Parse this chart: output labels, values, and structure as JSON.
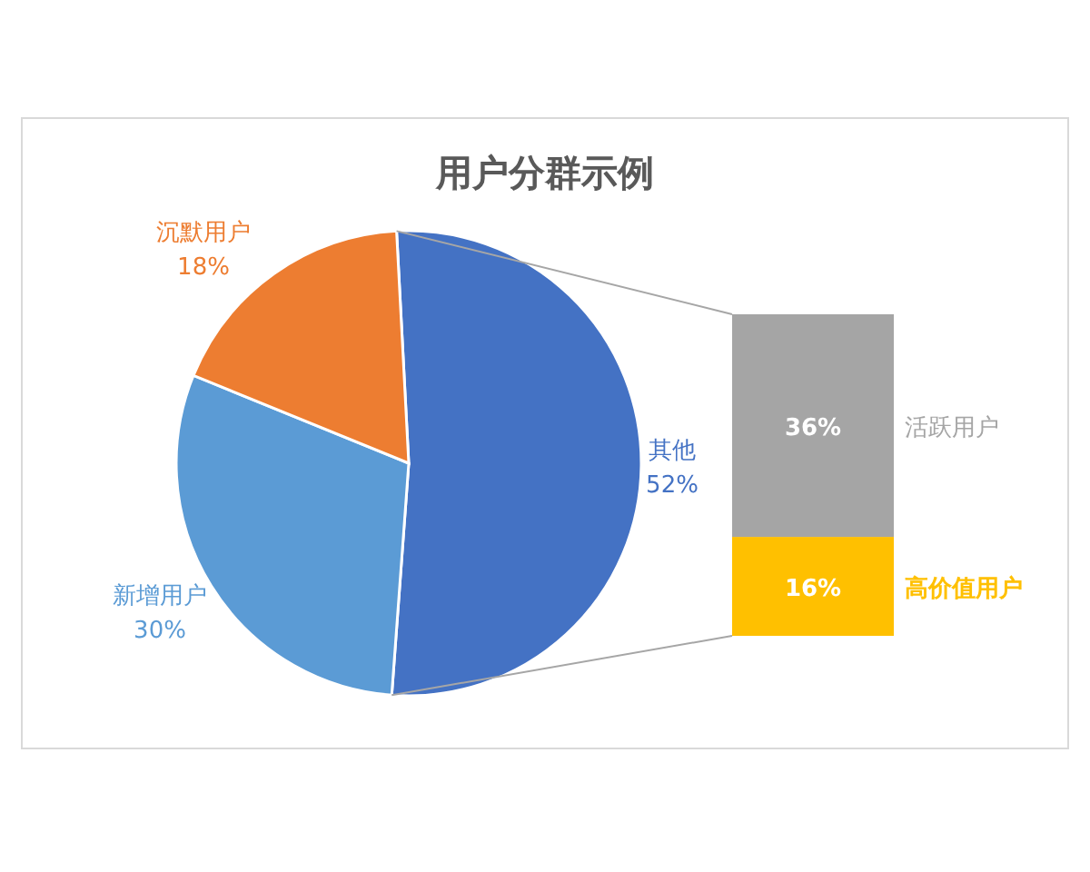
{
  "chart_data": [
    {
      "type": "pie",
      "title": "用户分群示例",
      "categories": [
        "其他",
        "新增用户",
        "沉默用户"
      ],
      "values": [
        52,
        30,
        18
      ],
      "colors": [
        "#4472c4",
        "#5b9bd5",
        "#ed7d31"
      ],
      "value_labels": [
        "52%",
        "30%",
        "18%"
      ]
    },
    {
      "type": "bar",
      "stacked": true,
      "categories": [
        null
      ],
      "series": [
        {
          "name": "高价值用户",
          "color": "#ffc000",
          "values": [
            16
          ],
          "value_labels": [
            "16%"
          ]
        },
        {
          "name": "活跃用户",
          "color": "#a5a5a5",
          "values": [
            36
          ],
          "value_labels": [
            "36%"
          ]
        }
      ]
    }
  ]
}
